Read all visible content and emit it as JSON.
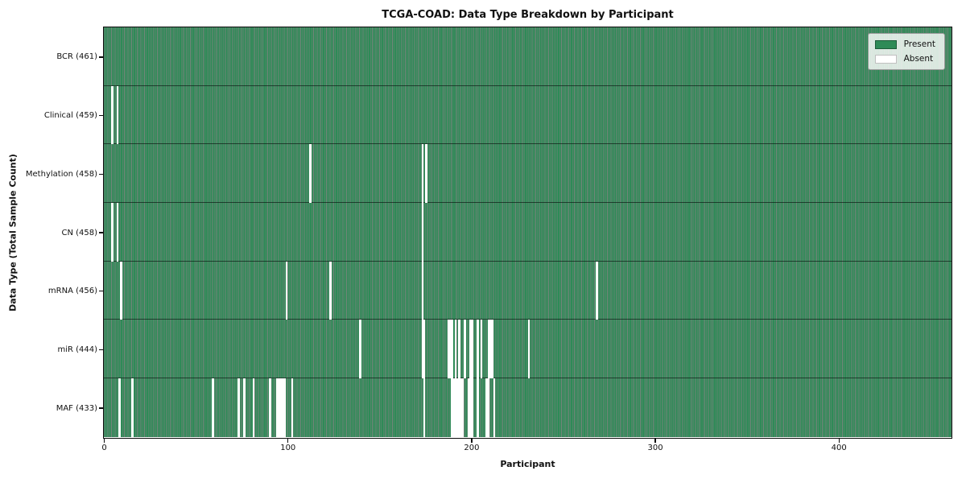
{
  "chart_data": {
    "type": "heatmap",
    "title": "TCGA-COAD: Data Type Breakdown by Participant",
    "xlabel": "Participant",
    "ylabel": "Data Type (Total Sample Count)",
    "x_ticks": [
      0,
      100,
      200,
      300,
      400
    ],
    "xlim": [
      0,
      461
    ],
    "n_participants": 461,
    "grid": false,
    "legend_position": "upper right",
    "colors": {
      "present": "#2e8b57",
      "bar_edge": "rgba(5,30,16,0.55)",
      "absent": "#ffffff",
      "plot_border": "#0d0d0d",
      "legend_face": "rgba(252,252,252,0.82)",
      "legend_border": "#9a9a9a"
    },
    "legend": [
      {
        "label": "Present",
        "color": "#2e8b57"
      },
      {
        "label": "Absent",
        "color": "#ffffff"
      }
    ],
    "rows": [
      {
        "name": "BCR",
        "label": "BCR (461)",
        "present_count": 461,
        "absent_participants": []
      },
      {
        "name": "Clinical",
        "label": "Clinical (459)",
        "present_count": 459,
        "absent_participants": [
          4,
          7
        ]
      },
      {
        "name": "Methylation",
        "label": "Methylation (458)",
        "present_count": 458,
        "absent_participants": [
          112,
          173,
          175
        ]
      },
      {
        "name": "CN",
        "label": "CN (458)",
        "present_count": 458,
        "absent_participants": [
          4,
          7,
          173
        ]
      },
      {
        "name": "mRNA",
        "label": "mRNA (456)",
        "present_count": 456,
        "absent_participants": [
          9,
          99,
          123,
          173,
          268
        ]
      },
      {
        "name": "miR",
        "label": "miR (444)",
        "present_count": 444,
        "absent_participants": [
          139,
          173,
          174,
          187,
          188,
          189,
          191,
          193,
          196,
          199,
          200,
          203,
          205,
          209,
          210,
          211,
          231
        ]
      },
      {
        "name": "MAF",
        "label": "MAF (433)",
        "present_count": 433,
        "absent_participants": [
          8,
          15,
          59,
          73,
          76,
          81,
          90,
          94,
          95,
          96,
          97,
          98,
          102,
          174,
          189,
          190,
          191,
          192,
          193,
          194,
          195,
          198,
          199,
          200,
          203,
          208,
          209,
          212
        ]
      }
    ]
  }
}
